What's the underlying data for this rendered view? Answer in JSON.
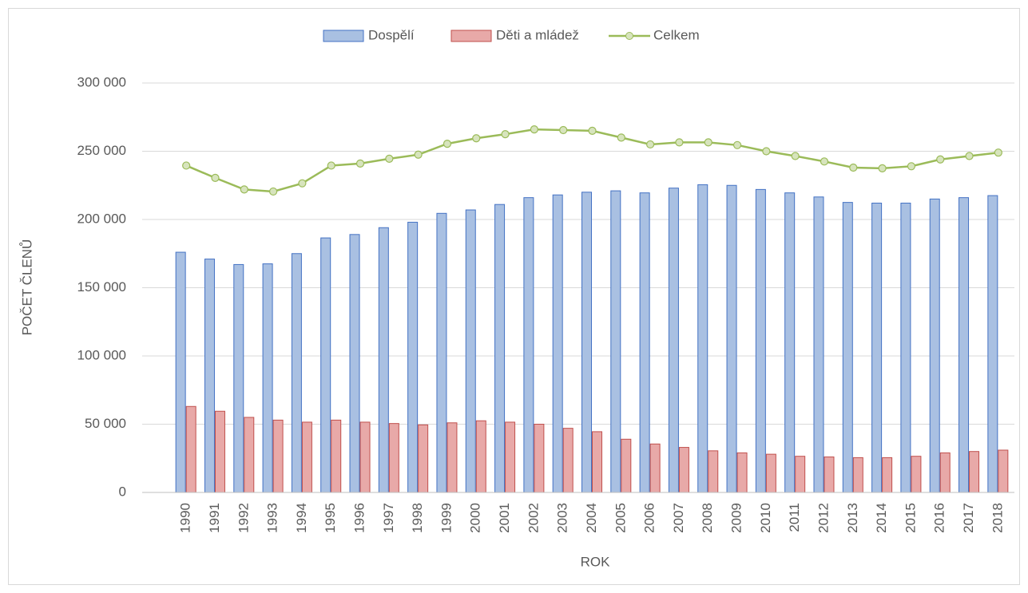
{
  "chart_data": {
    "type": "bar_line",
    "categories": [
      "1990",
      "1991",
      "1992",
      "1993",
      "1994",
      "1995",
      "1996",
      "1997",
      "1998",
      "1999",
      "2000",
      "2001",
      "2002",
      "2003",
      "2004",
      "2005",
      "2006",
      "2007",
      "2008",
      "2009",
      "2010",
      "2011",
      "2012",
      "2013",
      "2014",
      "2015",
      "2016",
      "2017",
      "2018"
    ],
    "series": [
      {
        "name": "Dospělí",
        "type": "bar",
        "color": "#4472c4",
        "fill": "#a9c0e2",
        "values": [
          176000,
          171000,
          167000,
          167500,
          175000,
          186500,
          189000,
          194000,
          198000,
          204500,
          207000,
          211000,
          216000,
          218000,
          220000,
          221000,
          219500,
          223000,
          225500,
          225000,
          222000,
          219500,
          216500,
          212500,
          212000,
          212000,
          215000,
          216000,
          217500
        ]
      },
      {
        "name": "Děti a mládež",
        "type": "bar",
        "color": "#c0504d",
        "fill": "#e8a9a8",
        "values": [
          63000,
          59500,
          55000,
          53000,
          51500,
          53000,
          51500,
          50500,
          49500,
          51000,
          52500,
          51500,
          50000,
          47000,
          44500,
          39000,
          35500,
          33000,
          30500,
          29000,
          28000,
          26500,
          26000,
          25500,
          25500,
          26500,
          29000,
          30000,
          31000
        ]
      },
      {
        "name": "Celkem",
        "type": "line",
        "color": "#9bbb59",
        "fill": "#d7e4bd",
        "values": [
          239500,
          230500,
          222000,
          220500,
          226500,
          239500,
          241000,
          244500,
          247500,
          255500,
          259500,
          262500,
          266000,
          265500,
          265000,
          260000,
          255000,
          256500,
          256500,
          254500,
          250000,
          246500,
          242500,
          238000,
          237500,
          239000,
          244000,
          246500,
          249000
        ]
      }
    ],
    "xlabel": "ROK",
    "ylabel": "POČET ČLENŮ",
    "ylim": [
      0,
      300000
    ],
    "yticks": [
      0,
      {
        "value": 50000,
        "label": "50 000"
      },
      {
        "value": 100000,
        "label": "100 000"
      },
      {
        "value": 150000,
        "label": "150 000"
      },
      {
        "value": 200000,
        "label": "200 000"
      },
      {
        "value": 250000,
        "label": "250 000"
      },
      {
        "value": 300000,
        "label": "300 000"
      }
    ],
    "grid": true,
    "legend": "top"
  }
}
